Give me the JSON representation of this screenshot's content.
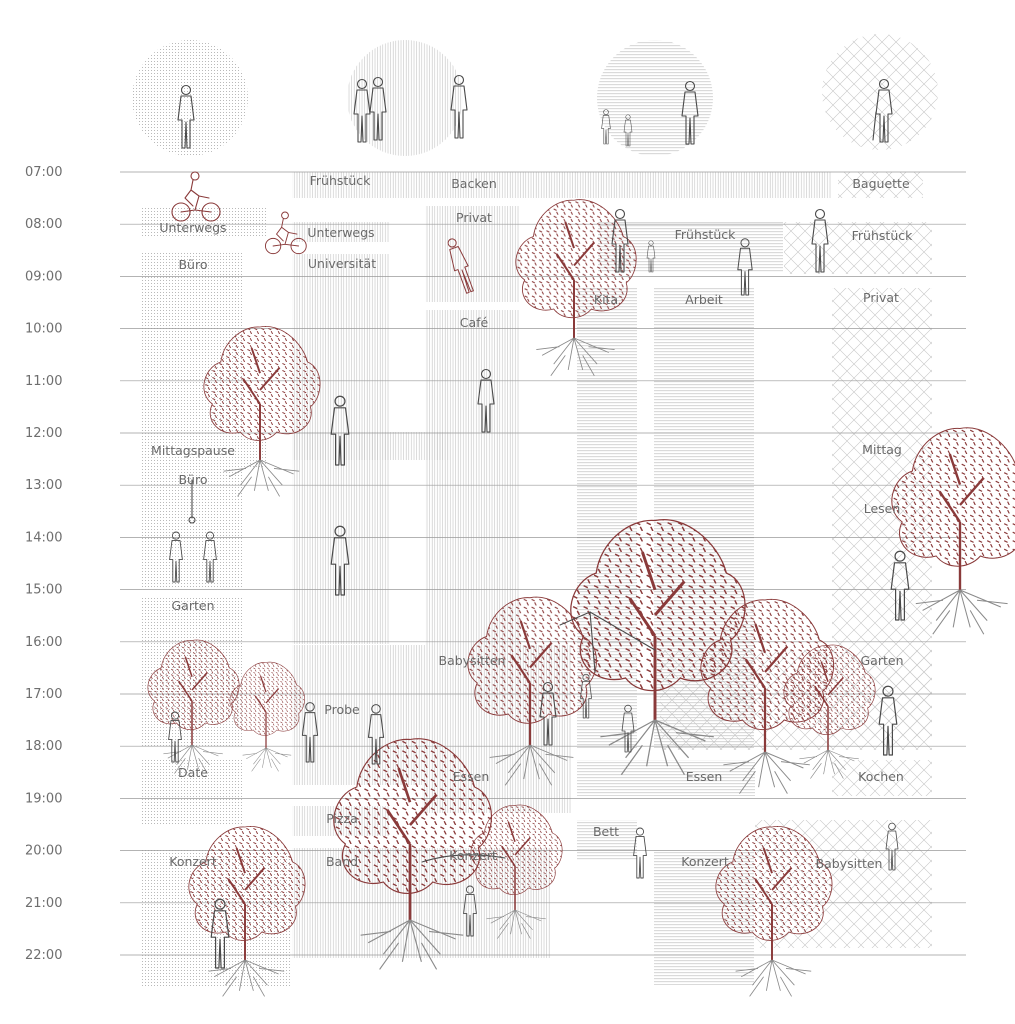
{
  "times": [
    "07:00",
    "08:00",
    "09:00",
    "10:00",
    "11:00",
    "12:00",
    "13:00",
    "14:00",
    "15:00",
    "16:00",
    "17:00",
    "18:00",
    "19:00",
    "20:00",
    "21:00",
    "22:00"
  ],
  "columns": [
    {
      "id": "p1",
      "pattern": "dots"
    },
    {
      "id": "p2",
      "pattern": "vert"
    },
    {
      "id": "p3",
      "pattern": "horiz"
    },
    {
      "id": "p4",
      "pattern": "cross"
    }
  ],
  "activities": [
    {
      "label": "Frühstück",
      "pattern": "vert"
    },
    {
      "label": "Backen",
      "pattern": "vert"
    },
    {
      "label": "Baguette",
      "pattern": "cross"
    },
    {
      "label": "Unterwegs",
      "pattern": "dots"
    },
    {
      "label": "Unterwegs",
      "pattern": "vert"
    },
    {
      "label": "Privat",
      "pattern": "vert"
    },
    {
      "label": "Frühstück",
      "pattern": "horiz"
    },
    {
      "label": "Frühstück",
      "pattern": "cross"
    },
    {
      "label": "Büro",
      "pattern": "dots"
    },
    {
      "label": "Universität",
      "pattern": "vert"
    },
    {
      "label": "Kita",
      "pattern": "horiz"
    },
    {
      "label": "Arbeit",
      "pattern": "horiz"
    },
    {
      "label": "Privat",
      "pattern": "cross"
    },
    {
      "label": "Café",
      "pattern": "vert"
    },
    {
      "label": "Mittagspause",
      "pattern": "dots"
    },
    {
      "label": "Mittag",
      "pattern": "cross"
    },
    {
      "label": "Büro",
      "pattern": "dots"
    },
    {
      "label": "Lesen",
      "pattern": "cross"
    },
    {
      "label": "Garten",
      "pattern": "dots"
    },
    {
      "label": "Babysitten",
      "pattern": "vert"
    },
    {
      "label": "Garten",
      "pattern": "cross"
    },
    {
      "label": "Probe",
      "pattern": "vert"
    },
    {
      "label": "Date",
      "pattern": "dots"
    },
    {
      "label": "Essen",
      "pattern": "vert"
    },
    {
      "label": "Essen",
      "pattern": "horiz"
    },
    {
      "label": "Kochen",
      "pattern": "cross"
    },
    {
      "label": "Pizza",
      "pattern": "vert"
    },
    {
      "label": "Bett",
      "pattern": "horiz"
    },
    {
      "label": "Konzert",
      "pattern": "dots"
    },
    {
      "label": "Band",
      "pattern": "vert"
    },
    {
      "label": "Konzert",
      "pattern": "vert"
    },
    {
      "label": "Konzert",
      "pattern": "horiz"
    },
    {
      "label": "Babysitten",
      "pattern": "cross"
    }
  ],
  "colors": {
    "grid": "#9a9a9a",
    "text": "#6e6e6e",
    "accent": "#8a3a3a",
    "pattern": "#b8b8b8"
  },
  "icons": [
    "person-icon",
    "couple-icon",
    "parent-children-icon",
    "elderly-person-icon",
    "tree-icon",
    "cyclist-icon"
  ]
}
